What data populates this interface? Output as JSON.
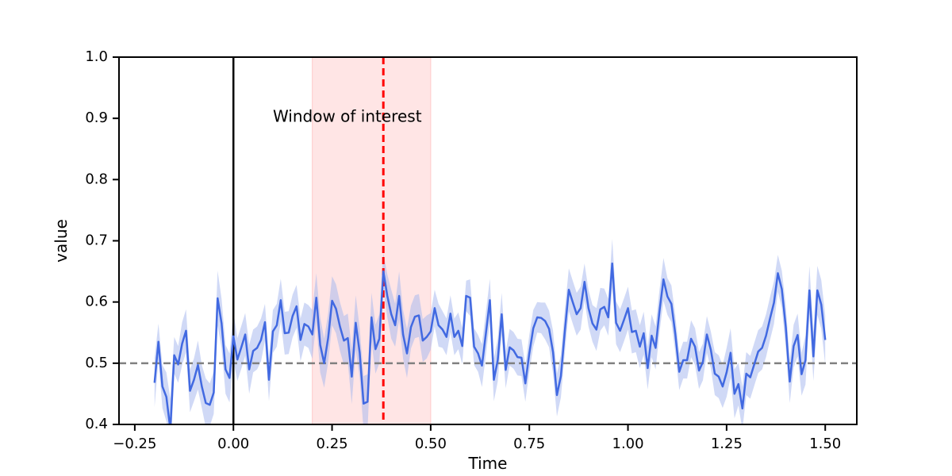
{
  "chart_data": {
    "type": "line",
    "xlabel": "Time",
    "ylabel": "value",
    "xlim": [
      -0.29,
      1.58
    ],
    "ylim": [
      0.4,
      1.0
    ],
    "xticks": [
      "−0.25",
      "0.00",
      "0.25",
      "0.50",
      "0.75",
      "1.00",
      "1.25",
      "1.50"
    ],
    "xtick_values": [
      -0.25,
      0.0,
      0.25,
      0.5,
      0.75,
      1.0,
      1.25,
      1.5
    ],
    "yticks": [
      "0.4",
      "0.5",
      "0.6",
      "0.7",
      "0.8",
      "0.9",
      "1.0"
    ],
    "ytick_values": [
      0.4,
      0.5,
      0.6,
      0.7,
      0.8,
      0.9,
      1.0
    ],
    "grid": false,
    "shaded_window": {
      "x_start": 0.2,
      "x_end": 0.5,
      "color": "#ffe5e5",
      "label": "Window of interest",
      "label_x": 0.1,
      "label_y": 0.9
    },
    "vertical_lines": [
      {
        "x": 0.0,
        "color": "#000000",
        "style": "solid"
      },
      {
        "x": 0.38,
        "color": "#ff0000",
        "style": "dashed"
      }
    ],
    "horizontal_lines": [
      {
        "y": 0.5,
        "color": "#808080",
        "style": "dashed"
      }
    ],
    "series": [
      {
        "color": "#4169e1",
        "band_color": "#a9b9ef",
        "x_start": -0.2,
        "x_step": 0.01,
        "values": [
          0.468,
          0.535,
          0.462,
          0.445,
          0.392,
          0.513,
          0.498,
          0.532,
          0.553,
          0.455,
          0.473,
          0.497,
          0.462,
          0.435,
          0.432,
          0.452,
          0.606,
          0.565,
          0.49,
          0.476,
          0.544,
          0.506,
          0.526,
          0.547,
          0.49,
          0.52,
          0.525,
          0.538,
          0.567,
          0.473,
          0.552,
          0.562,
          0.603,
          0.549,
          0.55,
          0.577,
          0.593,
          0.538,
          0.564,
          0.56,
          0.547,
          0.607,
          0.53,
          0.5,
          0.541,
          0.602,
          0.589,
          0.56,
          0.537,
          0.541,
          0.478,
          0.566,
          0.517,
          0.434,
          0.437,
          0.575,
          0.523,
          0.54,
          0.65,
          0.61,
          0.58,
          0.562,
          0.61,
          0.547,
          0.516,
          0.559,
          0.576,
          0.578,
          0.537,
          0.543,
          0.552,
          0.59,
          0.562,
          0.555,
          0.543,
          0.581,
          0.543,
          0.553,
          0.528,
          0.61,
          0.607,
          0.527,
          0.516,
          0.496,
          0.549,
          0.603,
          0.473,
          0.505,
          0.58,
          0.489,
          0.526,
          0.521,
          0.51,
          0.509,
          0.467,
          0.516,
          0.557,
          0.575,
          0.574,
          0.569,
          0.556,
          0.518,
          0.448,
          0.479,
          0.553,
          0.62,
          0.6,
          0.58,
          0.59,
          0.633,
          0.59,
          0.565,
          0.555,
          0.588,
          0.592,
          0.575,
          0.663,
          0.566,
          0.553,
          0.571,
          0.59,
          0.551,
          0.553,
          0.527,
          0.549,
          0.492,
          0.545,
          0.525,
          0.585,
          0.637,
          0.609,
          0.597,
          0.548,
          0.486,
          0.505,
          0.505,
          0.54,
          0.527,
          0.488,
          0.502,
          0.547,
          0.522,
          0.483,
          0.478,
          0.462,
          0.485,
          0.517,
          0.45,
          0.466,
          0.426,
          0.483,
          0.477,
          0.498,
          0.519,
          0.525,
          0.545,
          0.573,
          0.599,
          0.647,
          0.621,
          0.559,
          0.47,
          0.528,
          0.546,
          0.482,
          0.505,
          0.619,
          0.511,
          0.619,
          0.596,
          0.538
        ],
        "band_halfwidth": [
          0.04,
          0.03,
          0.035,
          0.04,
          0.05,
          0.03,
          0.03,
          0.035,
          0.035,
          0.035,
          0.035,
          0.04,
          0.035,
          0.04,
          0.035,
          0.035,
          0.045,
          0.04,
          0.04,
          0.04,
          0.04,
          0.035,
          0.035,
          0.035,
          0.04,
          0.035,
          0.035,
          0.035,
          0.03,
          0.035,
          0.035,
          0.035,
          0.035,
          0.035,
          0.035,
          0.035,
          0.035,
          0.035,
          0.035,
          0.035,
          0.04,
          0.04,
          0.045,
          0.04,
          0.04,
          0.04,
          0.04,
          0.04,
          0.04,
          0.04,
          0.045,
          0.045,
          0.04,
          0.045,
          0.045,
          0.04,
          0.04,
          0.04,
          0.03,
          0.035,
          0.04,
          0.035,
          0.04,
          0.04,
          0.04,
          0.035,
          0.035,
          0.035,
          0.035,
          0.035,
          0.03,
          0.03,
          0.035,
          0.03,
          0.03,
          0.03,
          0.03,
          0.03,
          0.03,
          0.025,
          0.03,
          0.03,
          0.03,
          0.035,
          0.035,
          0.035,
          0.035,
          0.035,
          0.035,
          0.03,
          0.03,
          0.03,
          0.03,
          0.03,
          0.03,
          0.03,
          0.03,
          0.025,
          0.025,
          0.03,
          0.03,
          0.035,
          0.035,
          0.035,
          0.035,
          0.035,
          0.035,
          0.035,
          0.035,
          0.03,
          0.03,
          0.03,
          0.035,
          0.035,
          0.03,
          0.03,
          0.04,
          0.035,
          0.035,
          0.035,
          0.035,
          0.035,
          0.035,
          0.035,
          0.035,
          0.035,
          0.035,
          0.035,
          0.035,
          0.035,
          0.03,
          0.03,
          0.03,
          0.03,
          0.03,
          0.03,
          0.03,
          0.03,
          0.03,
          0.03,
          0.03,
          0.03,
          0.035,
          0.035,
          0.035,
          0.04,
          0.04,
          0.04,
          0.035,
          0.035,
          0.035,
          0.035,
          0.035,
          0.035,
          0.035,
          0.035,
          0.035,
          0.035,
          0.03,
          0.03,
          0.035,
          0.035,
          0.035,
          0.035,
          0.035,
          0.04,
          0.04,
          0.04,
          0.04,
          0.04,
          0.04
        ]
      }
    ]
  }
}
